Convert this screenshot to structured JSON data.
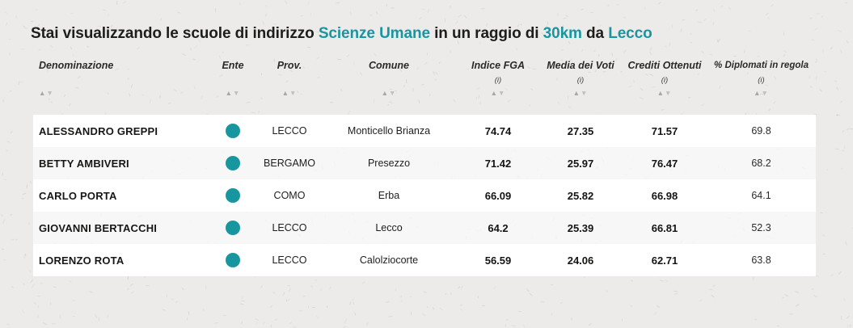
{
  "colors": {
    "accent": "#1896a0",
    "background": "#ecebea",
    "ente_dot": "#1896a0"
  },
  "title": {
    "parts": [
      {
        "text": "Stai visualizzando le scuole di indirizzo ",
        "accent": false
      },
      {
        "text": "Scienze Umane",
        "accent": true
      },
      {
        "text": " in un raggio di ",
        "accent": false
      },
      {
        "text": "30km",
        "accent": true
      },
      {
        "text": " da ",
        "accent": false
      },
      {
        "text": "Lecco",
        "accent": true
      }
    ]
  },
  "table": {
    "sort_icons": {
      "asc": "▲",
      "desc": "▼"
    },
    "info_marker": "(i)",
    "columns": [
      {
        "label": "Denominazione",
        "info": ""
      },
      {
        "label": "Ente",
        "info": ""
      },
      {
        "label": "Prov.",
        "info": ""
      },
      {
        "label": "Comune",
        "info": ""
      },
      {
        "label": "Indice FGA",
        "info": "(i)"
      },
      {
        "label": "Media dei Voti",
        "info": "(i)"
      },
      {
        "label": "Crediti Ottenuti",
        "info": "(i)"
      },
      {
        "label": "% Diplomati in regola",
        "info": "(i)"
      }
    ],
    "rows": [
      {
        "denominazione": "ALESSANDRO GREPPI",
        "prov": "LECCO",
        "comune": "Monticello Brianza",
        "indice_fga": "74.74",
        "media_voti": "27.35",
        "crediti": "71.57",
        "diplomati": "69.8"
      },
      {
        "denominazione": "BETTY AMBIVERI",
        "prov": "BERGAMO",
        "comune": "Presezzo",
        "indice_fga": "71.42",
        "media_voti": "25.97",
        "crediti": "76.47",
        "diplomati": "68.2"
      },
      {
        "denominazione": "CARLO PORTA",
        "prov": "COMO",
        "comune": "Erba",
        "indice_fga": "66.09",
        "media_voti": "25.82",
        "crediti": "66.98",
        "diplomati": "64.1"
      },
      {
        "denominazione": "GIOVANNI BERTACCHI",
        "prov": "LECCO",
        "comune": "Lecco",
        "indice_fga": "64.2",
        "media_voti": "25.39",
        "crediti": "66.81",
        "diplomati": "52.3"
      },
      {
        "denominazione": "LORENZO ROTA",
        "prov": "LECCO",
        "comune": "Calolziocorte",
        "indice_fga": "56.59",
        "media_voti": "24.06",
        "crediti": "62.71",
        "diplomati": "63.8"
      }
    ]
  }
}
